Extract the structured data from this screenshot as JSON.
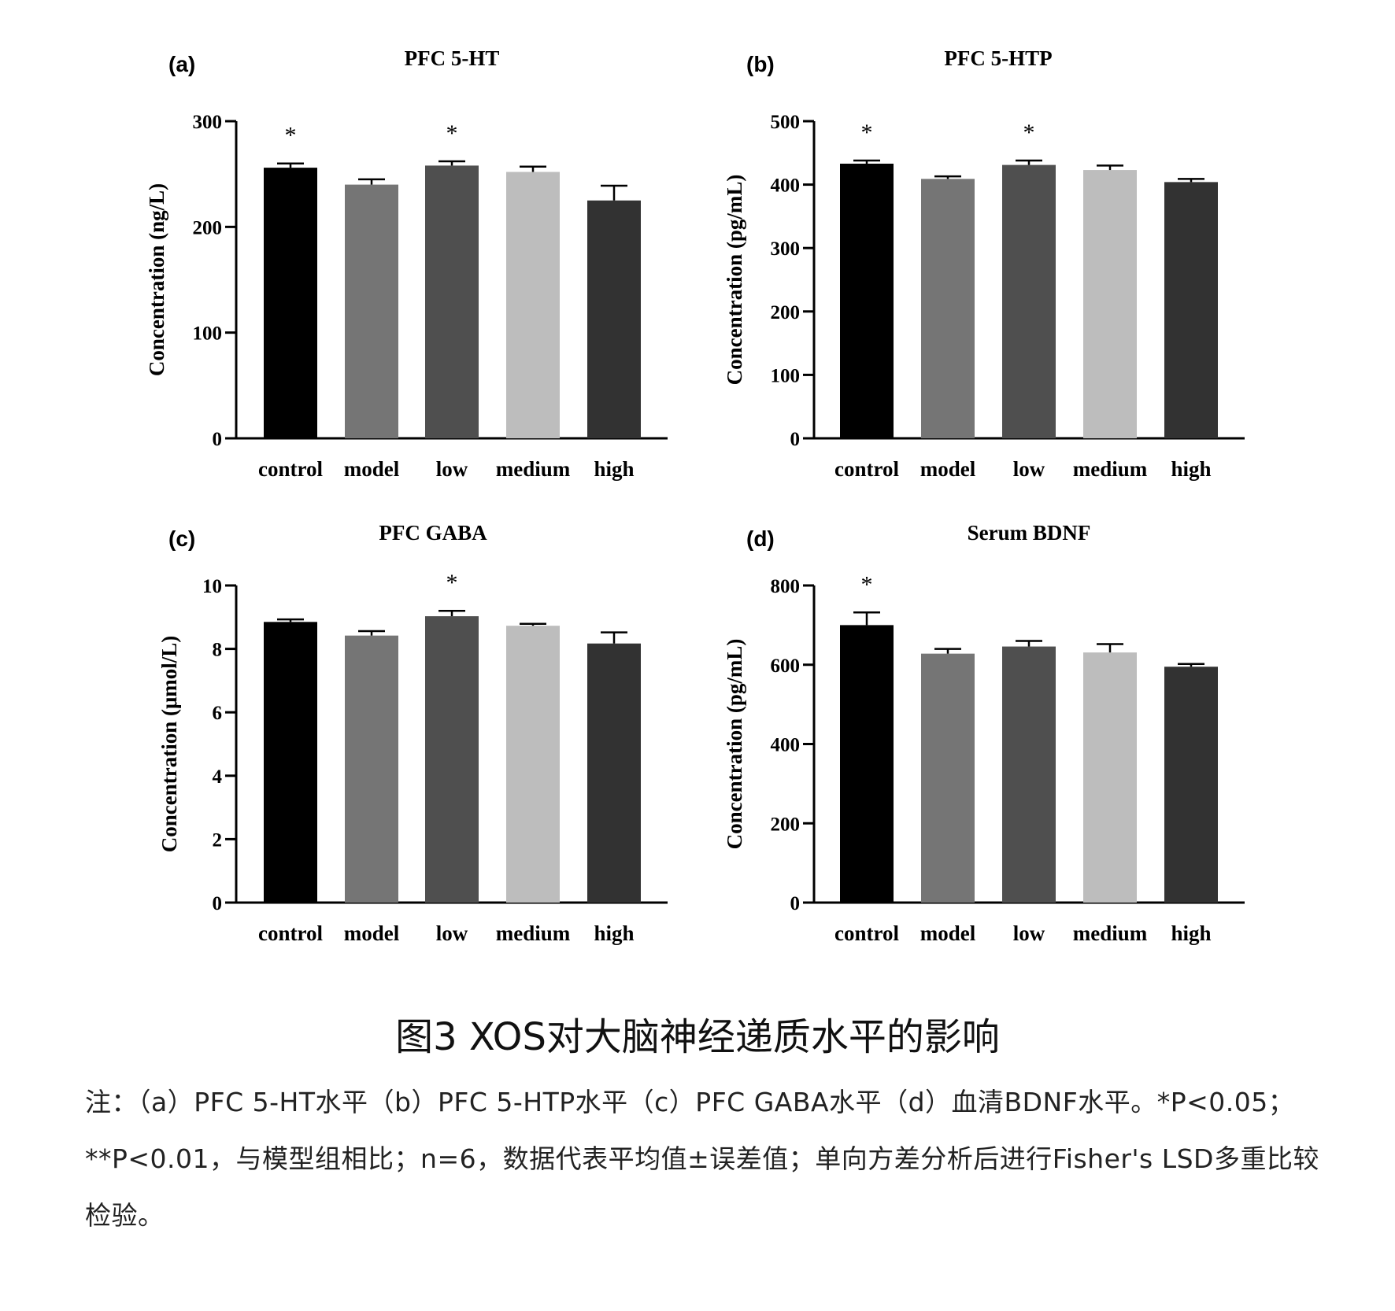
{
  "chart_data": [
    {
      "type": "bar",
      "panel_label": "(a)",
      "title": "PFC 5-HT",
      "ylabel": "Concentration (ng/L)",
      "ylim": [
        0,
        300
      ],
      "yticks": [
        0,
        100,
        200,
        300
      ],
      "categories": [
        "control",
        "model",
        "low",
        "medium",
        "high"
      ],
      "values": [
        256,
        240,
        258,
        252,
        225
      ],
      "errors": [
        4,
        5,
        4,
        5,
        14
      ],
      "significance": [
        "*",
        "",
        "*",
        "",
        ""
      ]
    },
    {
      "type": "bar",
      "panel_label": "(b)",
      "title": "PFC 5-HTP",
      "ylabel": "Concentration (pg/mL)",
      "ylim": [
        0,
        500
      ],
      "yticks": [
        0,
        100,
        200,
        300,
        400,
        500
      ],
      "categories": [
        "control",
        "model",
        "low",
        "medium",
        "high"
      ],
      "values": [
        433,
        409,
        431,
        423,
        404
      ],
      "errors": [
        5,
        4,
        7,
        7,
        5
      ],
      "significance": [
        "*",
        "",
        "*",
        "",
        ""
      ]
    },
    {
      "type": "bar",
      "panel_label": "(c)",
      "title": "PFC GABA",
      "ylabel": "Concentration (μmol/L)",
      "ylim": [
        0,
        10
      ],
      "yticks": [
        0,
        2,
        4,
        6,
        8,
        10
      ],
      "categories": [
        "control",
        "model",
        "low",
        "medium",
        "high"
      ],
      "values": [
        8.85,
        8.42,
        9.03,
        8.73,
        8.17
      ],
      "errors": [
        0.08,
        0.14,
        0.17,
        0.06,
        0.35
      ],
      "significance": [
        "",
        "",
        "*",
        "",
        ""
      ]
    },
    {
      "type": "bar",
      "panel_label": "(d)",
      "title": "Serum BDNF",
      "ylabel": "Concentration (pg/mL)",
      "ylim": [
        0,
        800
      ],
      "yticks": [
        0,
        200,
        400,
        600,
        800
      ],
      "categories": [
        "control",
        "model",
        "low",
        "medium",
        "high"
      ],
      "values": [
        700,
        628,
        646,
        631,
        595
      ],
      "errors": [
        32,
        12,
        14,
        21,
        7
      ],
      "significance": [
        "*",
        "",
        "",
        "",
        ""
      ]
    }
  ],
  "bar_colors": [
    "#000000",
    "#757575",
    "#4f4f4f",
    "#bdbdbd",
    "#323232"
  ],
  "caption": {
    "title": "图3 XOS对大脑神经递质水平的影响",
    "note": "注：（a）PFC 5-HT水平（b）PFC 5-HTP水平（c）PFC GABA水平（d）血清BDNF水平。*P<0.05；**P<0.01，与模型组相比；n=6，数据代表平均值±误差值；单向方差分析后进行Fisher's LSD多重比较检验。"
  }
}
